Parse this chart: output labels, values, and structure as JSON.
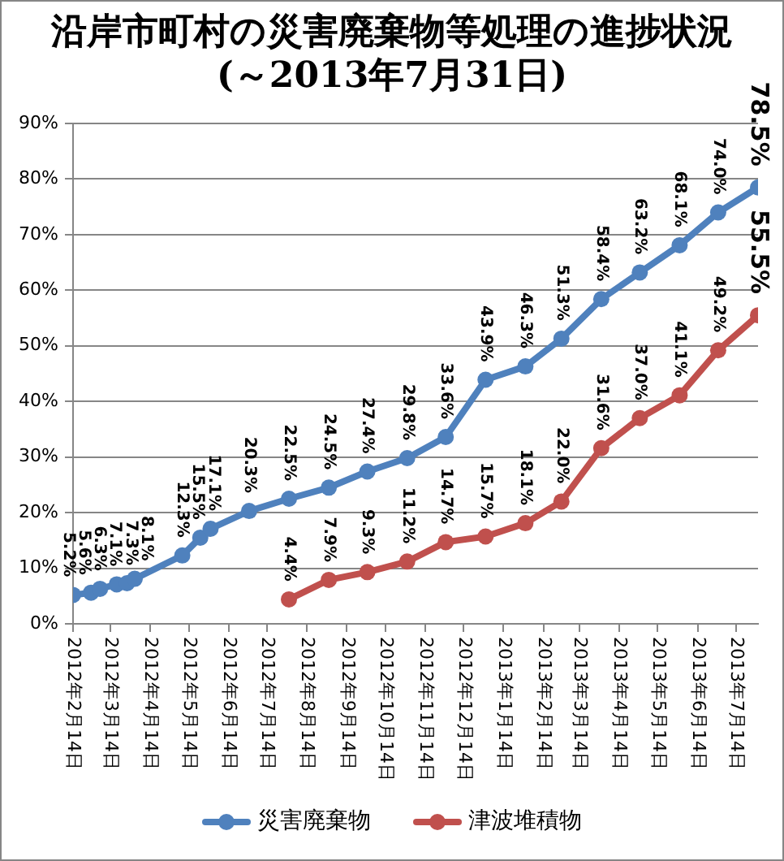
{
  "chart_data": {
    "type": "line",
    "title": "沿岸市町村の災害廃棄物等処理の進捗状況",
    "subtitle": "(～2013年7月31日)",
    "series": [
      {
        "name": "災害廃棄物",
        "color": "#4f81bd",
        "x": [
          "2012-02-14",
          "2012-02-28",
          "2012-03-06",
          "2012-03-19",
          "2012-03-27",
          "2012-04-02",
          "2012-05-09",
          "2012-05-23",
          "2012-05-31",
          "2012-06-30",
          "2012-07-31",
          "2012-08-31",
          "2012-09-30",
          "2012-10-31",
          "2012-11-30",
          "2012-12-31",
          "2013-01-31",
          "2013-02-28",
          "2013-03-31",
          "2013-04-30",
          "2013-05-31",
          "2013-06-30",
          "2013-07-31"
        ],
        "values": [
          5.2,
          5.6,
          6.3,
          7.1,
          7.3,
          8.1,
          12.3,
          15.5,
          17.1,
          20.3,
          22.5,
          24.5,
          27.4,
          29.8,
          33.6,
          43.9,
          46.3,
          51.3,
          58.4,
          63.2,
          68.1,
          74.0,
          78.5
        ],
        "value_labels": [
          "5.2%",
          "5.6%",
          "6.3%",
          "7.1%",
          "7.3%",
          "8.1%",
          "12.3%",
          "15.5%",
          "17.1%",
          "20.3%",
          "22.5%",
          "24.5%",
          "27.4%",
          "29.8%",
          "33.6%",
          "43.9%",
          "46.3%",
          "51.3%",
          "58.4%",
          "63.2%",
          "68.1%",
          "74.0%",
          "78.5%"
        ]
      },
      {
        "name": "津波堆積物",
        "color": "#c0504d",
        "x": [
          "2012-07-31",
          "2012-08-31",
          "2012-09-30",
          "2012-10-31",
          "2012-11-30",
          "2012-12-31",
          "2013-01-31",
          "2013-02-28",
          "2013-03-31",
          "2013-04-30",
          "2013-05-31",
          "2013-06-30",
          "2013-07-31"
        ],
        "values": [
          4.4,
          7.9,
          9.3,
          11.2,
          14.7,
          15.7,
          18.1,
          22.0,
          31.6,
          37.0,
          41.1,
          49.2,
          55.5
        ],
        "value_labels": [
          "4.4%",
          "7.9%",
          "9.3%",
          "11.2%",
          "14.7%",
          "15.7%",
          "18.1%",
          "22.0%",
          "31.6%",
          "37.0%",
          "41.1%",
          "49.2%",
          "55.5%"
        ]
      }
    ],
    "xlim": [
      "2012-02-14",
      "2013-07-31"
    ],
    "xticks": [
      {
        "value": "2012-02-14",
        "label": "2012年2月14日"
      },
      {
        "value": "2012-03-14",
        "label": "2012年3月14日"
      },
      {
        "value": "2012-04-14",
        "label": "2012年4月14日"
      },
      {
        "value": "2012-05-14",
        "label": "2012年5月14日"
      },
      {
        "value": "2012-06-14",
        "label": "2012年6月14日"
      },
      {
        "value": "2012-07-14",
        "label": "2012年7月14日"
      },
      {
        "value": "2012-08-14",
        "label": "2012年8月14日"
      },
      {
        "value": "2012-09-14",
        "label": "2012年9月14日"
      },
      {
        "value": "2012-10-14",
        "label": "2012年10月14日"
      },
      {
        "value": "2012-11-14",
        "label": "2012年11月14日"
      },
      {
        "value": "2012-12-14",
        "label": "2012年12月14日"
      },
      {
        "value": "2013-01-14",
        "label": "2013年1月14日"
      },
      {
        "value": "2013-02-14",
        "label": "2013年2月14日"
      },
      {
        "value": "2013-03-14",
        "label": "2013年3月14日"
      },
      {
        "value": "2013-04-14",
        "label": "2013年4月14日"
      },
      {
        "value": "2013-05-14",
        "label": "2013年5月14日"
      },
      {
        "value": "2013-06-14",
        "label": "2013年6月14日"
      },
      {
        "value": "2013-07-14",
        "label": "2013年7月14日"
      }
    ],
    "ylim": [
      0,
      90
    ],
    "yticks": [
      {
        "value": 0,
        "label": "0%"
      },
      {
        "value": 10,
        "label": "10%"
      },
      {
        "value": 20,
        "label": "20%"
      },
      {
        "value": 30,
        "label": "30%"
      },
      {
        "value": 40,
        "label": "40%"
      },
      {
        "value": 50,
        "label": "50%"
      },
      {
        "value": 60,
        "label": "60%"
      },
      {
        "value": 70,
        "label": "70%"
      },
      {
        "value": 80,
        "label": "80%"
      },
      {
        "value": 90,
        "label": "90%"
      }
    ],
    "grid": "y",
    "legend": "bottom",
    "marker": "circle",
    "line_style": "solid"
  }
}
